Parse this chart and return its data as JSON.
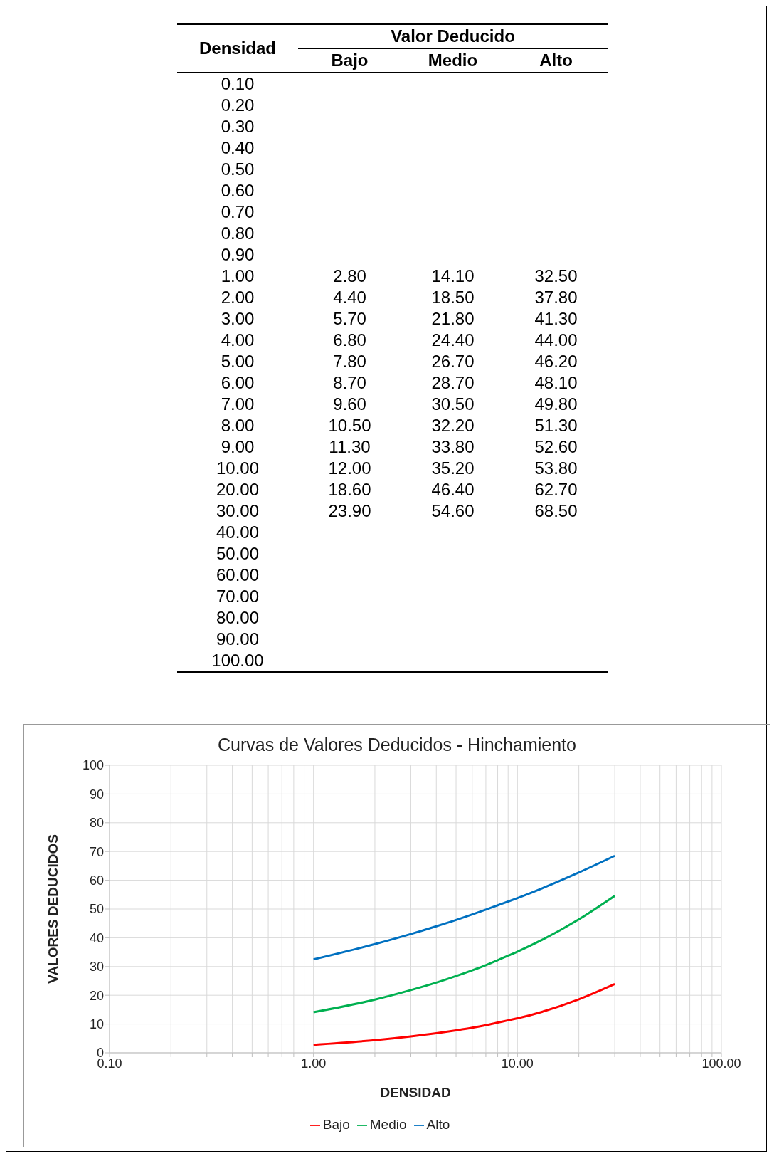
{
  "chart_data": [
    {
      "type": "heatmap",
      "xlabel": "Valor Deducido",
      "ylabel": "Densidad",
      "categories": [
        "Bajo",
        "Medio",
        "Alto"
      ],
      "y_categories": [
        "0.10",
        "0.20",
        "0.30",
        "0.40",
        "0.50",
        "0.60",
        "0.70",
        "0.80",
        "0.90",
        "1.00",
        "2.00",
        "3.00",
        "4.00",
        "5.00",
        "6.00",
        "7.00",
        "8.00",
        "9.00",
        "10.00",
        "20.00",
        "30.00",
        "40.00",
        "50.00",
        "60.00",
        "70.00",
        "80.00",
        "90.00",
        "100.00"
      ],
      "cells": [
        [
          null,
          null,
          null
        ],
        [
          null,
          null,
          null
        ],
        [
          null,
          null,
          null
        ],
        [
          null,
          null,
          null
        ],
        [
          null,
          null,
          null
        ],
        [
          null,
          null,
          null
        ],
        [
          null,
          null,
          null
        ],
        [
          null,
          null,
          null
        ],
        [
          null,
          null,
          null
        ],
        [
          2.8,
          14.1,
          32.5
        ],
        [
          4.4,
          18.5,
          37.8
        ],
        [
          5.7,
          21.8,
          41.3
        ],
        [
          6.8,
          24.4,
          44
        ],
        [
          7.8,
          26.7,
          46.2
        ],
        [
          8.7,
          28.7,
          48.1
        ],
        [
          9.6,
          30.5,
          49.8
        ],
        [
          10.5,
          32.2,
          51.3
        ],
        [
          11.3,
          33.8,
          52.6
        ],
        [
          12,
          35.2,
          53.8
        ],
        [
          18.6,
          46.4,
          62.7
        ],
        [
          23.9,
          54.6,
          68.5
        ],
        [
          null,
          null,
          null
        ],
        [
          null,
          null,
          null
        ],
        [
          null,
          null,
          null
        ],
        [
          null,
          null,
          null
        ],
        [
          null,
          null,
          null
        ],
        [
          null,
          null,
          null
        ],
        [
          null,
          null,
          null
        ]
      ],
      "cell_labels": [
        [
          null,
          null,
          null
        ],
        [
          null,
          null,
          null
        ],
        [
          null,
          null,
          null
        ],
        [
          null,
          null,
          null
        ],
        [
          null,
          null,
          null
        ],
        [
          null,
          null,
          null
        ],
        [
          null,
          null,
          null
        ],
        [
          null,
          null,
          null
        ],
        [
          null,
          null,
          null
        ],
        [
          "2.80",
          "14.10",
          "32.50"
        ],
        [
          "4.40",
          "18.50",
          "37.80"
        ],
        [
          "5.70",
          "21.80",
          "41.30"
        ],
        [
          "6.80",
          "24.40",
          "44.00"
        ],
        [
          "7.80",
          "26.70",
          "46.20"
        ],
        [
          "8.70",
          "28.70",
          "48.10"
        ],
        [
          "9.60",
          "30.50",
          "49.80"
        ],
        [
          "10.50",
          "32.20",
          "51.30"
        ],
        [
          "11.30",
          "33.80",
          "52.60"
        ],
        [
          "12.00",
          "35.20",
          "53.80"
        ],
        [
          "18.60",
          "46.40",
          "62.70"
        ],
        [
          "23.90",
          "54.60",
          "68.50"
        ],
        [
          null,
          null,
          null
        ],
        [
          null,
          null,
          null
        ],
        [
          null,
          null,
          null
        ],
        [
          null,
          null,
          null
        ],
        [
          null,
          null,
          null
        ],
        [
          null,
          null,
          null
        ],
        [
          null,
          null,
          null
        ]
      ]
    },
    {
      "type": "line",
      "title": "Curvas de Valores Deducidos - Hinchamiento",
      "xlabel": "DENSIDAD",
      "ylabel": "VALORES DEDUCIDOS",
      "x": [
        1,
        2,
        3,
        4,
        5,
        6,
        7,
        8,
        9,
        10,
        20,
        30
      ],
      "series": [
        {
          "name": "Bajo",
          "color": "#ff0000",
          "values": [
            2.8,
            4.4,
            5.7,
            6.8,
            7.8,
            8.7,
            9.6,
            10.5,
            11.3,
            12,
            18.6,
            23.9
          ]
        },
        {
          "name": "Medio",
          "color": "#00b050",
          "values": [
            14.1,
            18.5,
            21.8,
            24.4,
            26.7,
            28.7,
            30.5,
            32.2,
            33.8,
            35.2,
            46.4,
            54.6
          ]
        },
        {
          "name": "Alto",
          "color": "#0070c0",
          "values": [
            32.5,
            37.8,
            41.3,
            44,
            46.2,
            48.1,
            49.8,
            51.3,
            52.6,
            53.8,
            62.7,
            68.5
          ]
        }
      ],
      "xlim": [
        0.1,
        100
      ],
      "xticks": [
        {
          "value": 0.1,
          "label": "0.10"
        },
        {
          "value": 0.2,
          "label": null
        },
        {
          "value": 0.3,
          "label": null
        },
        {
          "value": 0.4,
          "label": null
        },
        {
          "value": 0.5,
          "label": null
        },
        {
          "value": 0.6,
          "label": null
        },
        {
          "value": 0.7,
          "label": null
        },
        {
          "value": 0.8,
          "label": null
        },
        {
          "value": 0.9,
          "label": null
        },
        {
          "value": 1,
          "label": "1.00"
        },
        {
          "value": 2,
          "label": null
        },
        {
          "value": 3,
          "label": null
        },
        {
          "value": 4,
          "label": null
        },
        {
          "value": 5,
          "label": null
        },
        {
          "value": 6,
          "label": null
        },
        {
          "value": 7,
          "label": null
        },
        {
          "value": 8,
          "label": null
        },
        {
          "value": 9,
          "label": null
        },
        {
          "value": 10,
          "label": "10.00"
        },
        {
          "value": 20,
          "label": null
        },
        {
          "value": 30,
          "label": null
        },
        {
          "value": 40,
          "label": null
        },
        {
          "value": 50,
          "label": null
        },
        {
          "value": 60,
          "label": null
        },
        {
          "value": 70,
          "label": null
        },
        {
          "value": 80,
          "label": null
        },
        {
          "value": 90,
          "label": null
        },
        {
          "value": 100,
          "label": "100.00"
        }
      ],
      "ylim": [
        0,
        100
      ],
      "yticks": [
        0,
        10,
        20,
        30,
        40,
        50,
        60,
        70,
        80,
        90,
        100
      ],
      "log": "x",
      "grid": true,
      "legend": "bottom",
      "marker": "none",
      "line_style": "solid"
    }
  ]
}
